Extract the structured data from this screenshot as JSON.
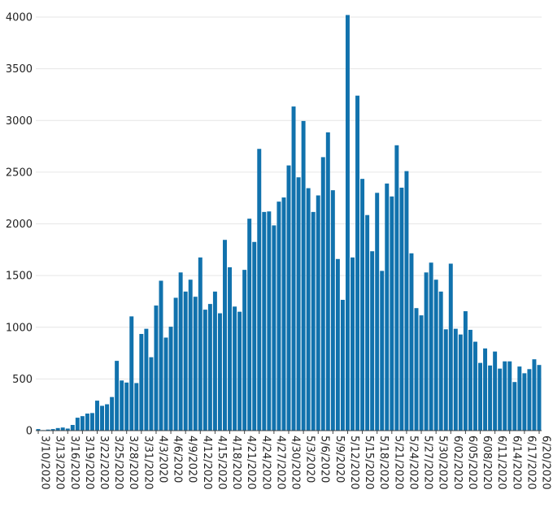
{
  "chart_data": {
    "type": "bar",
    "title": "",
    "xlabel": "",
    "ylabel": "",
    "ylim": [
      0,
      4000
    ],
    "yticks": [
      0,
      500,
      1000,
      1500,
      2000,
      2500,
      3000,
      3500,
      4000
    ],
    "grid": "horizontal",
    "bar_color": "#1172ad",
    "x_start": "2020-03-10",
    "tick_labels": [
      "3/10/2020",
      "3/13/2020",
      "3/16/2020",
      "3/19/2020",
      "3/22/2020",
      "3/25/2020",
      "3/28/2020",
      "3/31/2020",
      "4/3/2020",
      "4/6/2020",
      "4/9/2020",
      "4/12/2020",
      "4/15/2020",
      "4/18/2020",
      "4/21/2020",
      "4/24/2020",
      "4/27/2020",
      "4/30/2020",
      "5/3/2020",
      "5/6/2020",
      "5/9/2020",
      "5/12/2020",
      "5/15/2020",
      "5/18/2020",
      "5/21/2020",
      "5/24/2020",
      "5/27/2020",
      "5/30/2020",
      "6/02/2020",
      "6/05/2020",
      "6/08/2020",
      "6/11/2020",
      "6/14/2020",
      "6/17/2020",
      "6/20/2020"
    ],
    "values": [
      15,
      5,
      10,
      15,
      25,
      30,
      20,
      55,
      125,
      140,
      165,
      170,
      290,
      240,
      255,
      325,
      675,
      485,
      465,
      1105,
      460,
      935,
      985,
      710,
      1210,
      1450,
      900,
      1005,
      1285,
      1530,
      1345,
      1460,
      1295,
      1675,
      1170,
      1225,
      1345,
      1135,
      1845,
      1580,
      1200,
      1150,
      1555,
      2050,
      1825,
      2725,
      2115,
      2120,
      1985,
      2215,
      2255,
      2565,
      3135,
      2450,
      2995,
      2345,
      2115,
      2275,
      2645,
      2885,
      2325,
      1660,
      1265,
      4020,
      1675,
      3240,
      2435,
      2085,
      1735,
      2300,
      1545,
      2390,
      2265,
      2760,
      2350,
      2510,
      1715,
      1185,
      1115,
      1530,
      1625,
      1460,
      1345,
      980,
      1615,
      985,
      930,
      1155,
      975,
      860,
      655,
      795,
      630,
      765,
      600,
      670,
      670,
      470,
      620,
      555,
      595,
      690,
      635
    ]
  }
}
